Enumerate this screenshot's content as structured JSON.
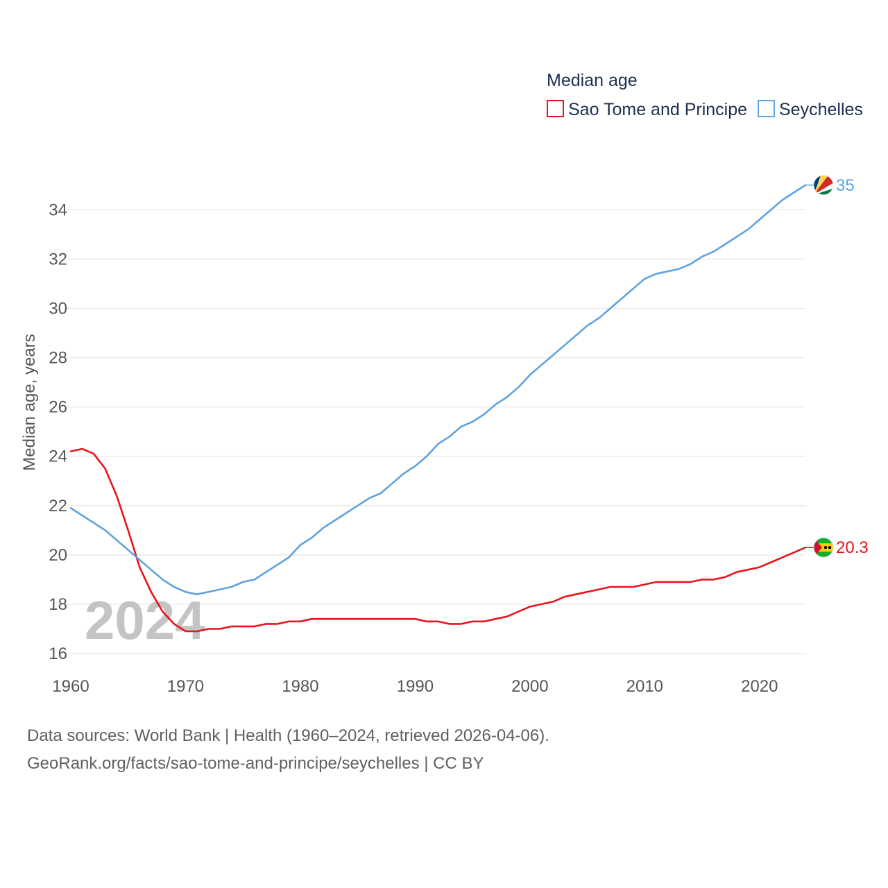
{
  "chart_data": {
    "type": "line",
    "title": "Median age",
    "ylabel": "Median age, years",
    "xlabel": "",
    "xlim": [
      1960,
      2024
    ],
    "ylim": [
      16,
      35.5
    ],
    "yticks": [
      16,
      18,
      20,
      22,
      24,
      26,
      28,
      30,
      32,
      34
    ],
    "xticks": [
      1960,
      1970,
      1980,
      1990,
      2000,
      2010,
      2020
    ],
    "grid": true,
    "legend_position": "top-right",
    "year_watermark": "2024",
    "x": [
      1960,
      1961,
      1962,
      1963,
      1964,
      1965,
      1966,
      1967,
      1968,
      1969,
      1970,
      1971,
      1972,
      1973,
      1974,
      1975,
      1976,
      1977,
      1978,
      1979,
      1980,
      1981,
      1982,
      1983,
      1984,
      1985,
      1986,
      1987,
      1988,
      1989,
      1990,
      1991,
      1992,
      1993,
      1994,
      1995,
      1996,
      1997,
      1998,
      1999,
      2000,
      2001,
      2002,
      2003,
      2004,
      2005,
      2006,
      2007,
      2008,
      2009,
      2010,
      2011,
      2012,
      2013,
      2014,
      2015,
      2016,
      2017,
      2018,
      2019,
      2020,
      2021,
      2022,
      2023,
      2024
    ],
    "series": [
      {
        "name": "Sao Tome and Principe",
        "color": "#e8141c",
        "end_label": "20.3",
        "flag": "sao-tome-flag-icon",
        "values": [
          24.2,
          24.3,
          24.1,
          23.5,
          22.4,
          21.0,
          19.5,
          18.5,
          17.7,
          17.2,
          16.9,
          16.9,
          17.0,
          17.0,
          17.1,
          17.1,
          17.1,
          17.2,
          17.2,
          17.3,
          17.3,
          17.4,
          17.4,
          17.4,
          17.4,
          17.4,
          17.4,
          17.4,
          17.4,
          17.4,
          17.4,
          17.3,
          17.3,
          17.2,
          17.2,
          17.3,
          17.3,
          17.4,
          17.5,
          17.7,
          17.9,
          18.0,
          18.1,
          18.3,
          18.4,
          18.5,
          18.6,
          18.7,
          18.7,
          18.7,
          18.8,
          18.9,
          18.9,
          18.9,
          18.9,
          19.0,
          19.0,
          19.1,
          19.3,
          19.4,
          19.5,
          19.7,
          19.9,
          20.1,
          20.3
        ]
      },
      {
        "name": "Seychelles",
        "color": "#5ea3e0",
        "end_label": "35",
        "flag": "seychelles-flag-icon",
        "values": [
          21.9,
          21.6,
          21.3,
          21.0,
          20.6,
          20.2,
          19.8,
          19.4,
          19.0,
          18.7,
          18.5,
          18.4,
          18.5,
          18.6,
          18.7,
          18.9,
          19.0,
          19.3,
          19.6,
          19.9,
          20.4,
          20.7,
          21.1,
          21.4,
          21.7,
          22.0,
          22.3,
          22.5,
          22.9,
          23.3,
          23.6,
          24.0,
          24.5,
          24.8,
          25.2,
          25.4,
          25.7,
          26.1,
          26.4,
          26.8,
          27.3,
          27.7,
          28.1,
          28.5,
          28.9,
          29.3,
          29.6,
          30.0,
          30.4,
          30.8,
          31.2,
          31.4,
          31.5,
          31.6,
          31.8,
          32.1,
          32.3,
          32.6,
          32.9,
          33.2,
          33.6,
          34.0,
          34.4,
          34.7,
          35.0
        ]
      }
    ]
  },
  "source": {
    "line1": "Data sources: World Bank | Health (1960–2024, retrieved 2026-04-06).",
    "line2": "GeoRank.org/facts/sao-tome-and-principe/seychelles | CC BY"
  }
}
